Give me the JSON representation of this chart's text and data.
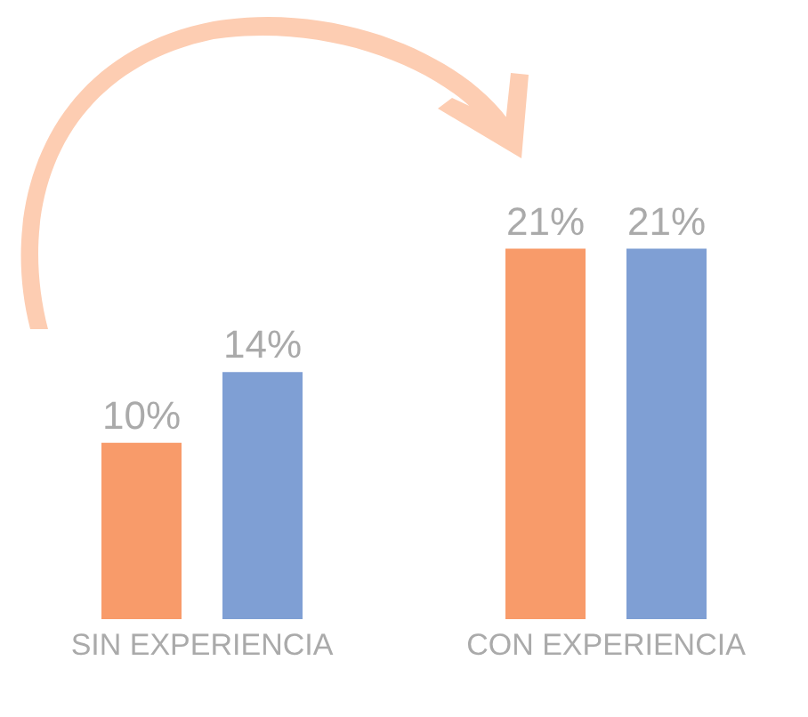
{
  "chart_data": {
    "type": "bar",
    "categories": [
      "SIN EXPERIENCIA",
      "CON EXPERIENCIA"
    ],
    "series": [
      {
        "color": "#f89b6a",
        "values": [
          10,
          21
        ],
        "value_labels": [
          "10%",
          "21%"
        ]
      },
      {
        "color": "#7f9fd4",
        "values": [
          14,
          21
        ],
        "value_labels": [
          "14%",
          "21%"
        ]
      }
    ],
    "tick_labels": "x",
    "grid": false,
    "legend": false
  }
}
